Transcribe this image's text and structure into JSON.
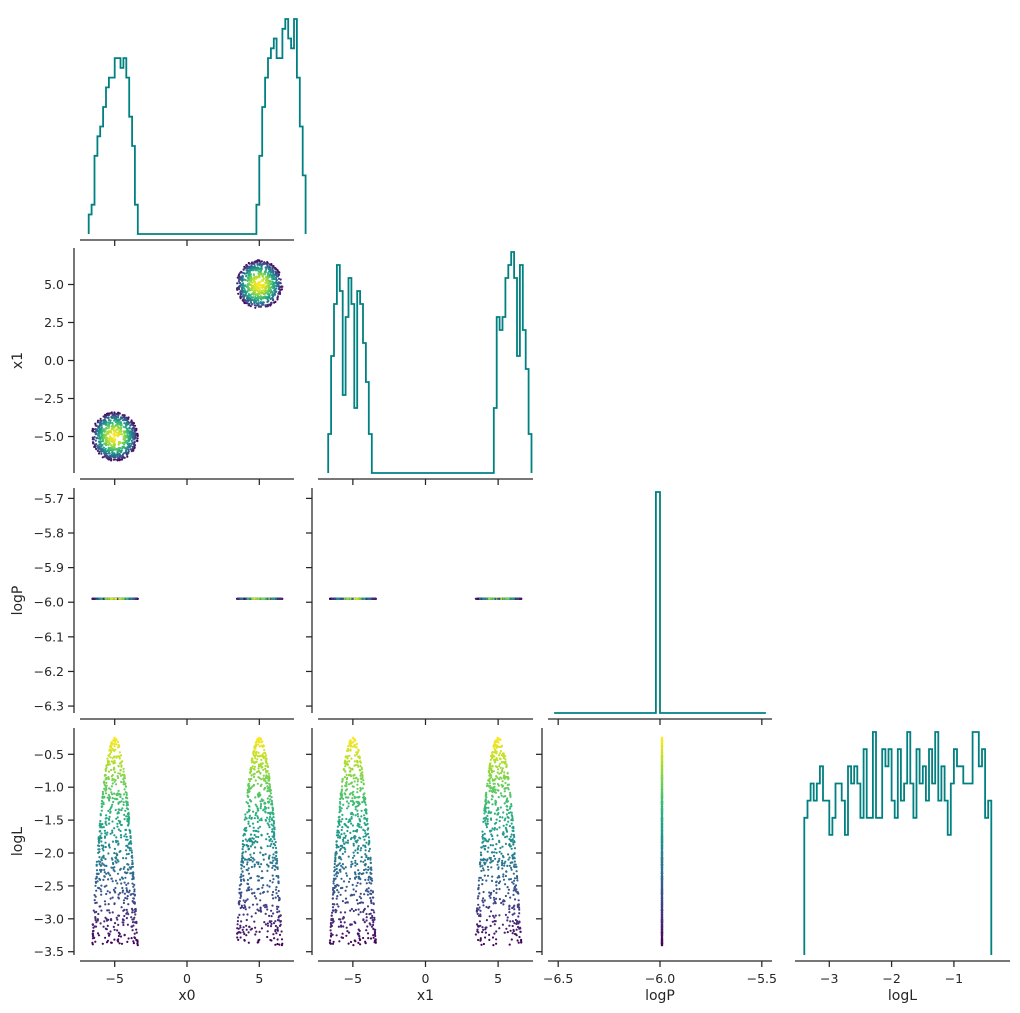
{
  "chart_data": {
    "type": "corner",
    "variables": [
      "x0",
      "x1",
      "logP",
      "logL"
    ],
    "axis_labels": {
      "x0": "x0",
      "x1": "x1",
      "logP": "logP",
      "logL": "logL"
    },
    "ranges": {
      "x0": [
        -7.4,
        7.4
      ],
      "x1": [
        -7.4,
        7.4
      ],
      "logP": [
        -6.55,
        -5.45
      ],
      "logL": [
        -3.55,
        -0.1
      ]
    },
    "point_ranges_y": {
      "x1": [
        -7.4,
        7.4
      ],
      "logP": [
        -6.32,
        -5.67
      ],
      "logL": [
        -3.55,
        -0.1
      ]
    },
    "ticks": {
      "x0": [
        -5,
        0,
        5
      ],
      "x1": [
        -5,
        0,
        5
      ],
      "logP": [
        -6.5,
        -6.0,
        -5.5
      ],
      "logL": [
        -3,
        -2,
        -1
      ]
    },
    "tick_labels": {
      "x0": [
        "−5",
        "0",
        "5"
      ],
      "x1": [
        "−5",
        "0",
        "5"
      ],
      "logP": [
        "−6.5",
        "−6.0",
        "−5.5"
      ],
      "logL": [
        "−3",
        "−2",
        "−1"
      ]
    },
    "y_ticks": {
      "x1": [
        -5.0,
        -2.5,
        0.0,
        2.5,
        5.0
      ],
      "logP": [
        -6.3,
        -6.2,
        -6.1,
        -6.0,
        -5.9,
        -5.8,
        -5.7
      ],
      "logL": [
        -3.5,
        -3.0,
        -2.5,
        -2.0,
        -1.5,
        -1.0,
        -0.5
      ]
    },
    "y_tick_labels": {
      "x1": [
        "−5.0",
        "−2.5",
        "0.0",
        "2.5",
        "5.0"
      ],
      "logP": [
        "−6.3",
        "−6.2",
        "−6.1",
        "−6.0",
        "−5.9",
        "−5.8",
        "−5.7"
      ],
      "logL": [
        "−3.5",
        "−3.0",
        "−2.5",
        "−2.0",
        "−1.5",
        "−1.0",
        "−0.5"
      ]
    },
    "histograms": {
      "x0": {
        "edges_start": -6.8,
        "bin_width": 0.2,
        "counts": [
          2,
          3,
          8,
          10,
          11,
          13,
          15,
          16,
          16,
          18,
          18,
          17,
          18,
          16,
          12,
          9,
          3,
          0,
          0,
          0,
          0,
          0,
          0,
          0,
          0,
          0,
          0,
          0,
          0,
          0,
          0,
          0,
          0,
          0,
          0,
          0,
          0,
          0,
          0,
          0,
          0,
          0,
          0,
          0,
          0,
          0,
          0,
          0,
          0,
          0,
          0,
          0,
          0,
          0,
          0,
          0,
          0,
          0,
          3,
          8,
          13,
          16,
          18,
          19,
          20,
          18,
          18,
          21,
          22,
          20,
          19,
          22,
          16,
          11,
          6
        ]
      },
      "x1": {
        "edges_start": -6.7,
        "bin_width": 0.2,
        "counts": [
          3,
          9,
          13,
          16,
          14,
          6,
          12,
          15,
          13,
          5,
          14,
          13,
          10,
          7,
          3,
          0,
          0,
          0,
          0,
          0,
          0,
          0,
          0,
          0,
          0,
          0,
          0,
          0,
          0,
          0,
          0,
          0,
          0,
          0,
          0,
          0,
          0,
          0,
          0,
          0,
          0,
          0,
          0,
          0,
          0,
          0,
          0,
          0,
          0,
          0,
          0,
          0,
          0,
          0,
          0,
          0,
          0,
          5,
          12,
          11,
          12,
          15,
          16,
          17,
          15,
          9,
          16,
          11,
          8,
          3
        ]
      },
      "logP": {
        "edges_start": -6.52,
        "bin_width": 0.02,
        "counts": [
          0,
          0,
          0,
          0,
          0,
          0,
          0,
          0,
          0,
          0,
          0,
          0,
          0,
          0,
          0,
          0,
          0,
          0,
          0,
          0,
          0,
          0,
          0,
          0,
          0,
          100,
          0,
          0,
          0,
          0,
          0,
          0,
          0,
          0,
          0,
          0,
          0,
          0,
          0,
          0,
          0,
          0,
          0,
          0,
          0,
          0,
          0,
          0,
          0,
          0,
          0,
          0
        ]
      },
      "logL": {
        "edges_start": -3.4,
        "bin_width": 0.05,
        "counts": [
          8,
          9,
          10,
          9,
          10,
          11,
          9,
          9,
          7,
          8,
          10,
          10,
          9,
          7,
          11,
          10,
          11,
          10,
          8,
          12,
          8,
          8,
          13,
          8,
          8,
          12,
          11,
          12,
          9,
          8,
          12,
          9,
          10,
          13,
          10,
          8,
          12,
          10,
          11,
          9,
          12,
          10,
          13,
          9,
          11,
          9,
          7,
          10,
          12,
          11,
          11,
          10,
          10,
          10,
          13,
          13,
          11,
          12,
          8,
          9
        ]
      }
    },
    "scatter": {
      "modes": [
        [
          -5,
          -5
        ],
        [
          5,
          5
        ]
      ],
      "mode_radius": 1.6,
      "logP_value": -5.99,
      "logL_max": -0.25,
      "logL_min": -3.4,
      "n_points_per_mode": 700,
      "colormap": "viridis"
    },
    "colors": {
      "histogram": "#008080",
      "axis": "#262626"
    },
    "grid": false,
    "legend": "none"
  }
}
